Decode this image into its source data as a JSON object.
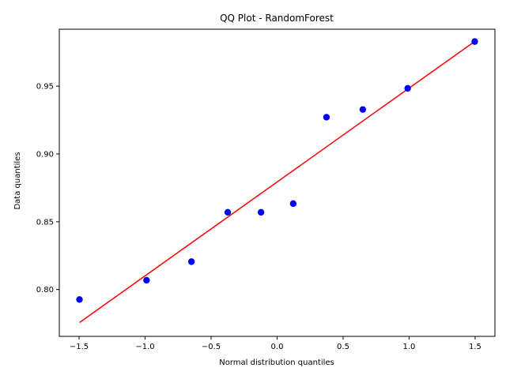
{
  "chart_data": {
    "type": "scatter",
    "title": "QQ Plot - RandomForest",
    "xlabel": "Normal distribution quantiles",
    "ylabel": "Data quantiles",
    "xlim": [
      -1.65,
      1.65
    ],
    "ylim": [
      0.7655,
      0.992
    ],
    "xticks": [
      -1.5,
      -1.0,
      -0.5,
      0.0,
      0.5,
      1.0,
      1.5
    ],
    "xtick_labels": [
      "−1.5",
      "−1.0",
      "−0.5",
      "0.0",
      "0.5",
      "1.0",
      "1.5"
    ],
    "yticks": [
      0.8,
      0.85,
      0.9,
      0.95
    ],
    "ytick_labels": [
      "0.80",
      "0.85",
      "0.90",
      "0.95"
    ],
    "grid": false,
    "series": [
      {
        "type": "scatter",
        "color": "#0000ff",
        "x": [
          -1.497,
          -0.989,
          -0.649,
          -0.374,
          -0.122,
          0.122,
          0.374,
          0.649,
          0.989,
          1.497
        ],
        "y": [
          0.7927,
          0.8069,
          0.8206,
          0.857,
          0.857,
          0.8634,
          0.9271,
          0.9328,
          0.9484,
          0.9829
        ]
      },
      {
        "type": "line",
        "color": "#ff0000",
        "x": [
          -1.497,
          1.497
        ],
        "y": [
          0.7757,
          0.983
        ]
      }
    ]
  }
}
